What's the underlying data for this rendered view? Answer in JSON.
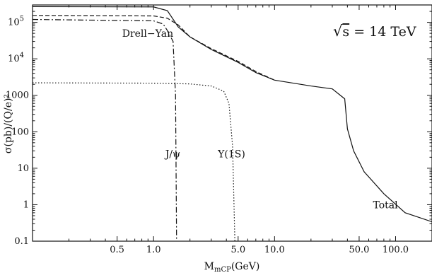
{
  "chart_data": {
    "type": "line",
    "title": "",
    "xlabel": "M",
    "xlabel_sub": "mCP",
    "xlabel_unit": "(GeV)",
    "ylabel": "σ(pb)/(Q/e)²",
    "x_scale": "log",
    "y_scale": "log",
    "xlim": [
      0.1,
      200
    ],
    "ylim": [
      0.1,
      300000
    ],
    "grid": false,
    "x_ticks": [
      {
        "value": 0.5,
        "label": "0.5"
      },
      {
        "value": 1.0,
        "label": "1.0"
      },
      {
        "value": 5.0,
        "label": "5.0"
      },
      {
        "value": 10.0,
        "label": "10.0"
      },
      {
        "value": 50.0,
        "label": "50.0"
      },
      {
        "value": 100.0,
        "label": "100.0"
      }
    ],
    "y_ticks": [
      {
        "value": 0.1,
        "label": "0.1"
      },
      {
        "value": 1,
        "label": "1"
      },
      {
        "value": 10,
        "label": "10"
      },
      {
        "value": 100,
        "label": "100"
      },
      {
        "value": 1000,
        "label": "1000"
      },
      {
        "value": 10000,
        "label": "10",
        "exp": "4"
      },
      {
        "value": 100000,
        "label": "10",
        "exp": "5"
      }
    ],
    "series": [
      {
        "name": "Total",
        "style": "solid",
        "points": [
          [
            0.1,
            270000
          ],
          [
            1.0,
            265000
          ],
          [
            1.3,
            210000
          ],
          [
            1.6,
            75000
          ],
          [
            2.0,
            40000
          ],
          [
            3.0,
            18000
          ],
          [
            5.0,
            8000
          ],
          [
            7.0,
            4200
          ],
          [
            10.0,
            2600
          ],
          [
            20.0,
            1800
          ],
          [
            30.0,
            1500
          ],
          [
            38.0,
            800
          ],
          [
            40.0,
            120
          ],
          [
            45.0,
            30
          ],
          [
            55.0,
            8
          ],
          [
            80.0,
            2
          ],
          [
            120.0,
            0.6
          ],
          [
            200.0,
            0.34
          ]
        ]
      },
      {
        "name": "Drell-Yan",
        "style": "dashed",
        "points": [
          [
            0.1,
            155000
          ],
          [
            1.0,
            150000
          ],
          [
            1.3,
            130000
          ],
          [
            1.6,
            85000
          ],
          [
            2.0,
            40000
          ],
          [
            3.0,
            19000
          ],
          [
            5.0,
            8500
          ],
          [
            7.0,
            4500
          ],
          [
            10.0,
            2600
          ]
        ]
      },
      {
        "name": "J/ψ",
        "style": "dashdot",
        "points": [
          [
            0.1,
            120000
          ],
          [
            1.0,
            110000
          ],
          [
            1.2,
            90000
          ],
          [
            1.3,
            60000
          ],
          [
            1.45,
            30000
          ],
          [
            1.52,
            1000
          ],
          [
            1.55,
            0.1
          ]
        ]
      },
      {
        "name": "Υ(1S)",
        "style": "dotted",
        "points": [
          [
            0.1,
            2200
          ],
          [
            1.0,
            2150
          ],
          [
            2.0,
            2050
          ],
          [
            3.0,
            1800
          ],
          [
            3.8,
            1300
          ],
          [
            4.2,
            600
          ],
          [
            4.5,
            40
          ],
          [
            4.7,
            0.1
          ]
        ]
      }
    ],
    "annotations": [
      {
        "id": "drell-yan",
        "text": "Drell−Yan",
        "x": 0.55,
        "y": 40000
      },
      {
        "id": "jpsi",
        "text": "J/ψ",
        "x": 1.25,
        "y": 20
      },
      {
        "id": "upsilon",
        "text": "Υ(1S)",
        "x": 3.4,
        "y": 20
      },
      {
        "id": "total",
        "text": "Total",
        "x": 65,
        "y": 0.8
      }
    ],
    "energy_label": {
      "prefix": "√",
      "overline": "s",
      "suffix": " = 14 TeV"
    }
  }
}
